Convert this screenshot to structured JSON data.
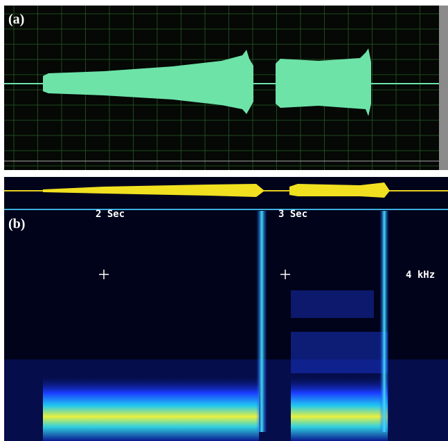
{
  "panel_a": {
    "label": "(a)"
  },
  "panel_b": {
    "label": "(b)",
    "time_labels": [
      "2 Sec",
      "3 Sec"
    ],
    "freq_label": "4 kHz"
  }
}
